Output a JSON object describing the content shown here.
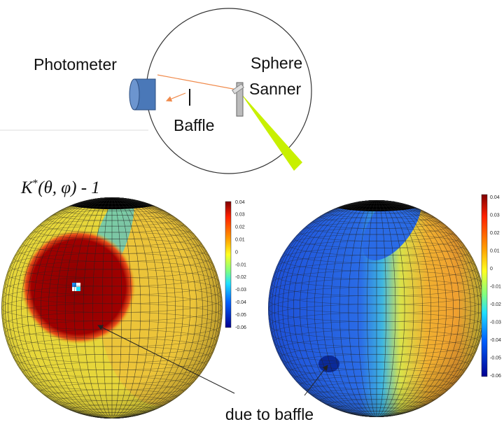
{
  "diagram": {
    "labels": {
      "photometer": "Photometer",
      "sphere": "Sphere",
      "scanner": "Sanner",
      "baffle": "Baffle"
    },
    "formula": {
      "base": "K",
      "sup": "*",
      "rest": "(θ, φ) - 1"
    },
    "colorbars": [
      {
        "ticks": [
          "0.04",
          "0.03",
          "0.02",
          "0.01",
          "0",
          "-0.01",
          "-0.02",
          "-0.03",
          "-0.04",
          "-0.05",
          "-0.06"
        ]
      },
      {
        "ticks": [
          "0.04",
          "0.03",
          "0.02",
          "0.01",
          "0",
          "-0.01",
          "-0.02",
          "-0.03",
          "-0.04",
          "-0.05",
          "-0.06"
        ]
      }
    ],
    "annotation": "due to baffle"
  }
}
